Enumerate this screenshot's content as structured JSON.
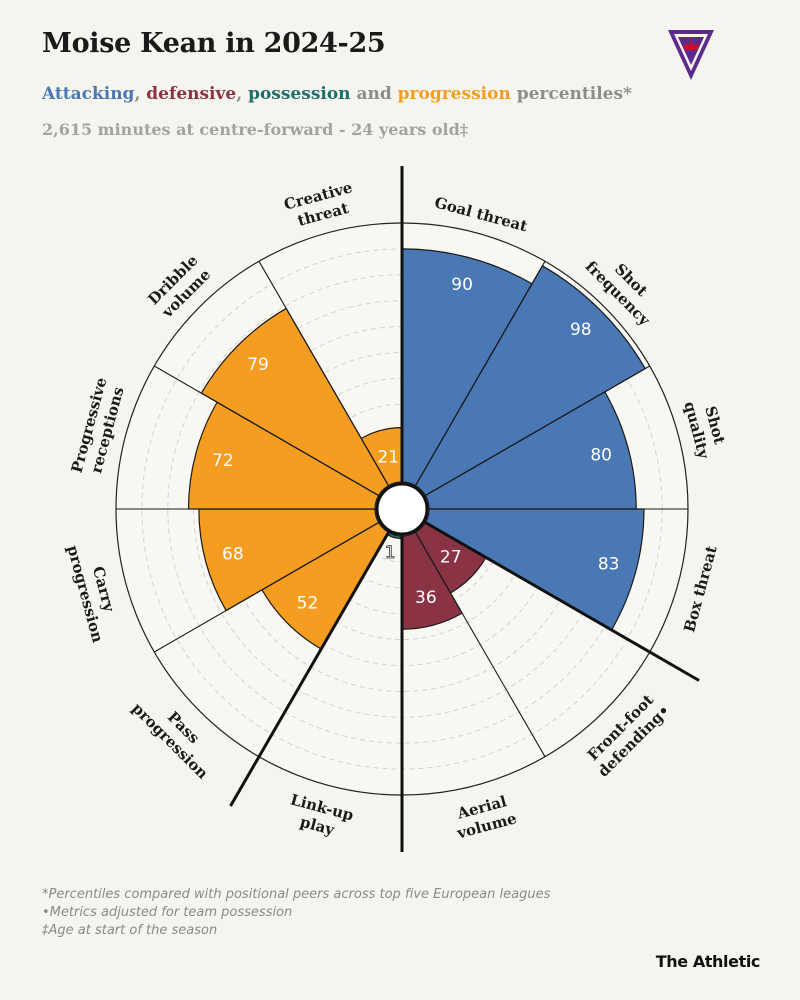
{
  "header": {
    "title": "Moise Kean in 2024-25",
    "subtitle_parts": [
      {
        "text": "Attacking",
        "color": "#4a78b5"
      },
      {
        "text": ", ",
        "color": "#8c8c8c"
      },
      {
        "text": "defensive",
        "color": "#8a3345"
      },
      {
        "text": ", ",
        "color": "#8c8c8c"
      },
      {
        "text": "possession",
        "color": "#1e6e6a"
      },
      {
        "text": " and ",
        "color": "#8c8c8c"
      },
      {
        "text": "progression",
        "color": "#f59d20"
      },
      {
        "text": " percentiles*",
        "color": "#8c8c8c"
      }
    ],
    "info": "2,615 minutes at centre-forward - 24 years old‡"
  },
  "logo_icon": "fiorentina-crest-icon",
  "colors": {
    "attacking": "#4a78b5",
    "defensive": "#8a3345",
    "possession": "#1e6e6a",
    "progression": "#f59d20"
  },
  "chart_data": {
    "type": "radar",
    "scale": [
      0,
      100
    ],
    "metrics": [
      {
        "label": [
          "Goal threat"
        ],
        "value": 90,
        "group": "attacking"
      },
      {
        "label": [
          "Shot",
          "frequency"
        ],
        "value": 98,
        "group": "attacking"
      },
      {
        "label": [
          "Shot",
          "quality"
        ],
        "value": 80,
        "group": "attacking"
      },
      {
        "label": [
          "Box threat"
        ],
        "value": 83,
        "group": "attacking"
      },
      {
        "label": [
          "Front-foot",
          "defending•"
        ],
        "value": 27,
        "group": "defensive"
      },
      {
        "label": [
          "Aerial",
          "volume"
        ],
        "value": 36,
        "group": "defensive"
      },
      {
        "label": [
          "Link-up",
          "play"
        ],
        "value": 1,
        "group": "possession"
      },
      {
        "label": [
          "Pass",
          "progression"
        ],
        "value": 52,
        "group": "progression"
      },
      {
        "label": [
          "Carry",
          "progression"
        ],
        "value": 68,
        "group": "progression"
      },
      {
        "label": [
          "Progressive",
          "receptions"
        ],
        "value": 72,
        "group": "progression"
      },
      {
        "label": [
          "Dribble",
          "volume"
        ],
        "value": 79,
        "group": "progression"
      },
      {
        "label": [
          "Creative",
          "threat"
        ],
        "value": 21,
        "group": "progression"
      }
    ]
  },
  "footnotes": [
    "*Percentiles compared with positional peers across top five European leagues",
    "•Metrics adjusted for team possession",
    "‡Age at start of the season"
  ],
  "brand": "The Athletic"
}
